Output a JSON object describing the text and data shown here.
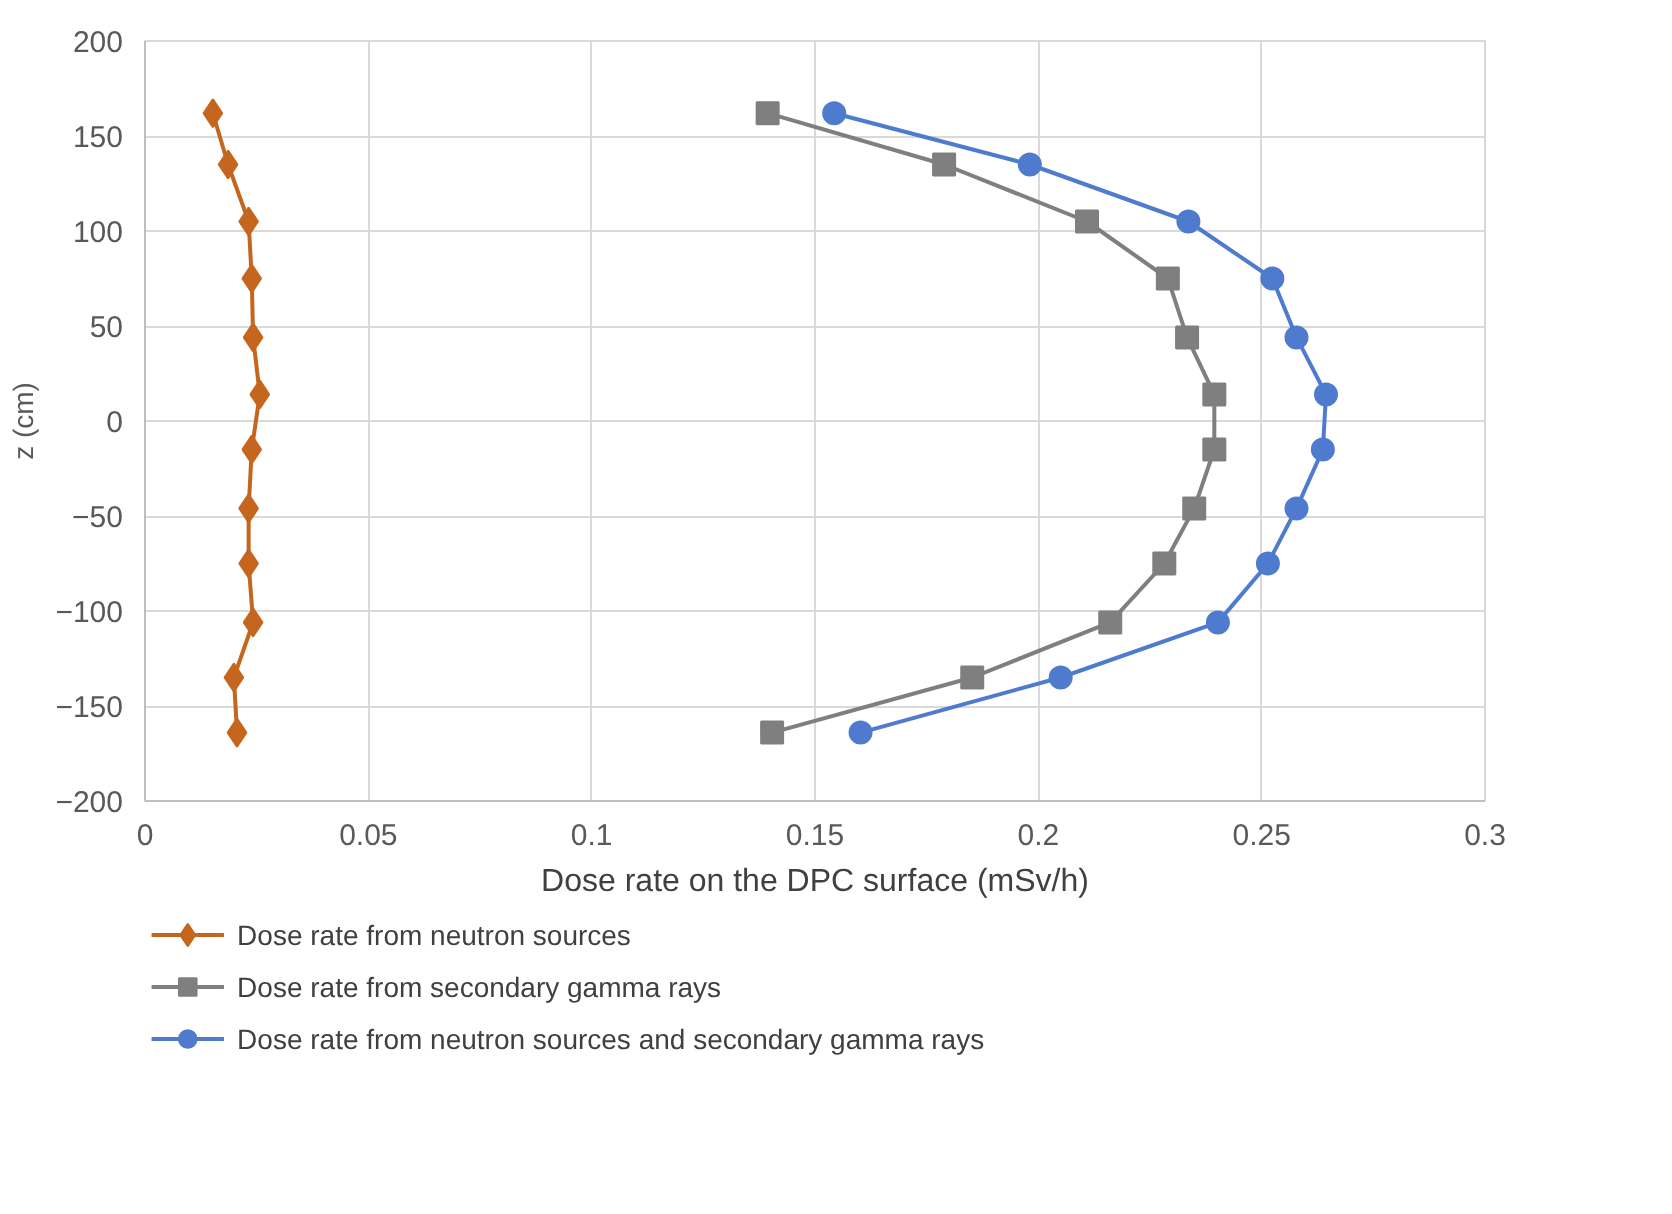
{
  "chart_data": {
    "type": "line",
    "xlabel": "Dose rate on the DPC surface (mSv/h)",
    "ylabel": "z (cm)",
    "xlim": [
      0,
      0.3
    ],
    "xticks": [
      0,
      0.05,
      0.1,
      0.15,
      0.2,
      0.25,
      0.3
    ],
    "ylim": [
      -200,
      200
    ],
    "yticks": [
      -200,
      -150,
      -100,
      -50,
      0,
      50,
      100,
      150,
      200
    ],
    "grid": true,
    "legend": "bottom",
    "series": [
      {
        "name": "Dose rate from neutron sources",
        "color": "#c5661e",
        "marker": "diamond",
        "x": [
          0.0152,
          0.0186,
          0.0232,
          0.0239,
          0.0242,
          0.0257,
          0.0239,
          0.0232,
          0.0232,
          0.0242,
          0.0199,
          0.0206
        ],
        "values": [
          162,
          135,
          105,
          75,
          44,
          14,
          -15,
          -46,
          -75,
          -106,
          -135,
          -164
        ]
      },
      {
        "name": "Dose rate from secondary gamma rays",
        "color": "#7f7f7f",
        "marker": "square",
        "x": [
          0.1394,
          0.1789,
          0.2109,
          0.229,
          0.2333,
          0.2394,
          0.2394,
          0.2349,
          0.2282,
          0.2161,
          0.1852,
          0.1404
        ],
        "values": [
          162,
          135,
          105,
          75,
          44,
          14,
          -15,
          -46,
          -75,
          -106,
          -135,
          -164
        ]
      },
      {
        "name": "Dose rate from neutron sources and secondary gamma rays",
        "color": "#4f7bcf",
        "marker": "circle",
        "x": [
          0.1543,
          0.1981,
          0.2336,
          0.2524,
          0.2578,
          0.2644,
          0.2637,
          0.2578,
          0.2514,
          0.2402,
          0.205,
          0.1602
        ],
        "values": [
          162,
          135,
          105,
          75,
          44,
          14,
          -15,
          -46,
          -75,
          -106,
          -135,
          -164
        ]
      }
    ]
  }
}
